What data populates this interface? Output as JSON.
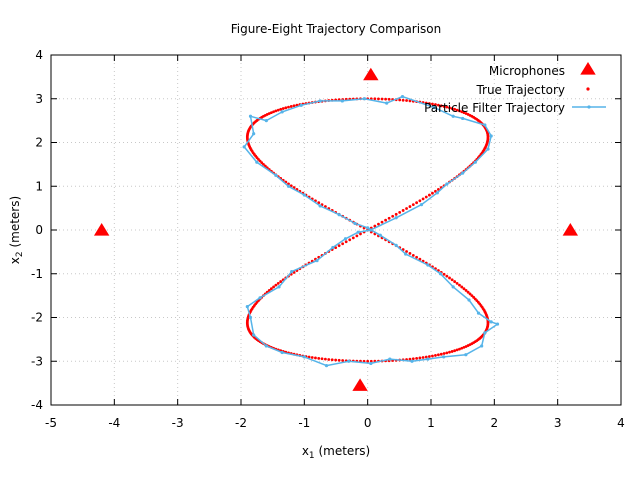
{
  "chart_data": {
    "type": "scatter",
    "title": "Figure-Eight Trajectory Comparison",
    "xlabel": {
      "base": "x",
      "sub": "1",
      "rest": " (meters)"
    },
    "ylabel": {
      "base": "x",
      "sub": "2",
      "rest": " (meters)"
    },
    "xlim": [
      -5,
      4
    ],
    "ylim": [
      -4,
      4
    ],
    "xticks": [
      -5,
      -4,
      -3,
      -2,
      -1,
      0,
      1,
      2,
      3,
      4
    ],
    "yticks": [
      -4,
      -3,
      -2,
      -1,
      0,
      1,
      2,
      3,
      4
    ],
    "grid": true,
    "legend_position": "top-right",
    "series": [
      {
        "name": "Microphones",
        "style": "triangle",
        "color": "#ff0000",
        "points": [
          [
            0.05,
            3.55
          ],
          [
            -4.2,
            0.0
          ],
          [
            3.2,
            0.0
          ],
          [
            -0.12,
            -3.55
          ]
        ]
      },
      {
        "name": "True Trajectory",
        "style": "dots",
        "color": "#ff0000",
        "curve": {
          "amplitude_x": 1.9,
          "amplitude_y": 3.0
        }
      },
      {
        "name": "Particle Filter Trajectory",
        "style": "line-points",
        "color": "#56b4e9",
        "points": [
          [
            0.05,
            0.0
          ],
          [
            0.45,
            0.28
          ],
          [
            0.85,
            0.58
          ],
          [
            1.1,
            0.85
          ],
          [
            1.25,
            1.05
          ],
          [
            1.5,
            1.3
          ],
          [
            1.7,
            1.55
          ],
          [
            1.9,
            1.85
          ],
          [
            1.95,
            2.15
          ],
          [
            1.85,
            2.4
          ],
          [
            1.5,
            2.55
          ],
          [
            1.35,
            2.6
          ],
          [
            1.05,
            2.8
          ],
          [
            0.55,
            3.05
          ],
          [
            0.3,
            2.9
          ],
          [
            -0.05,
            3.0
          ],
          [
            -0.4,
            2.95
          ],
          [
            -0.75,
            2.95
          ],
          [
            -1.05,
            2.85
          ],
          [
            -1.35,
            2.7
          ],
          [
            -1.6,
            2.5
          ],
          [
            -1.85,
            2.6
          ],
          [
            -1.8,
            2.2
          ],
          [
            -1.95,
            1.9
          ],
          [
            -1.75,
            1.55
          ],
          [
            -1.45,
            1.25
          ],
          [
            -1.25,
            1.0
          ],
          [
            -1.0,
            0.8
          ],
          [
            -0.75,
            0.55
          ],
          [
            -0.45,
            0.35
          ],
          [
            -0.2,
            0.15
          ],
          [
            0.0,
            0.05
          ],
          [
            0.2,
            -0.12
          ],
          [
            0.45,
            -0.35
          ],
          [
            0.6,
            -0.55
          ],
          [
            0.95,
            -0.8
          ],
          [
            1.15,
            -1.0
          ],
          [
            1.35,
            -1.3
          ],
          [
            1.6,
            -1.6
          ],
          [
            1.75,
            -1.9
          ],
          [
            1.95,
            -2.1
          ],
          [
            2.05,
            -2.15
          ],
          [
            1.85,
            -2.35
          ],
          [
            1.8,
            -2.65
          ],
          [
            1.55,
            -2.85
          ],
          [
            1.2,
            -2.9
          ],
          [
            0.95,
            -2.95
          ],
          [
            0.7,
            -3.0
          ],
          [
            0.35,
            -2.95
          ],
          [
            0.05,
            -3.05
          ],
          [
            -0.3,
            -3.0
          ],
          [
            -0.65,
            -3.1
          ],
          [
            -1.0,
            -2.9
          ],
          [
            -1.35,
            -2.8
          ],
          [
            -1.6,
            -2.65
          ],
          [
            -1.8,
            -2.4
          ],
          [
            -1.85,
            -2.0
          ],
          [
            -1.9,
            -1.75
          ],
          [
            -1.7,
            -1.55
          ],
          [
            -1.4,
            -1.3
          ],
          [
            -1.2,
            -0.95
          ],
          [
            -0.8,
            -0.7
          ],
          [
            -0.55,
            -0.4
          ],
          [
            -0.35,
            -0.2
          ],
          [
            -0.15,
            -0.05
          ],
          [
            0.05,
            0.0
          ]
        ]
      }
    ]
  }
}
